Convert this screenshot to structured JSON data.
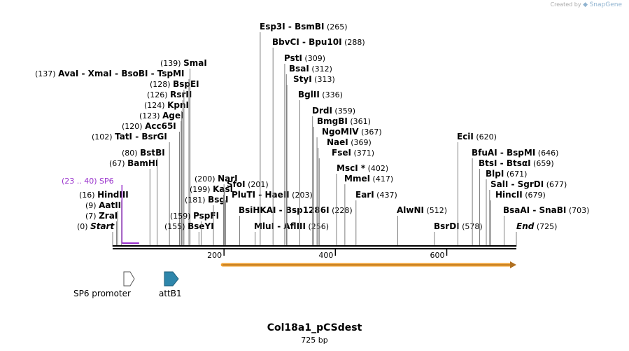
{
  "app": {
    "credit_prefix": "Created by",
    "credit_brand": "SnapGene",
    "brand_icon": "snapgene-logo-icon"
  },
  "plasmid": {
    "name": "Col18a1_pCSdest",
    "length_label": "725 bp",
    "length": 725
  },
  "ruler": {
    "ticks": [
      "200",
      "400",
      "600"
    ],
    "tick_values": [
      200,
      400,
      600
    ]
  },
  "colors": {
    "site_line": "#7f7f7f",
    "backbone": "#000000",
    "primer": "#9932cc",
    "orf_fill": "#f0a030",
    "orf_stroke": "#b07020",
    "promoter_fill": "#ffffff",
    "attb_fill": "#2e86ab"
  },
  "sites": [
    {
      "pos": 0,
      "label": "Start",
      "num": "(0)",
      "num_before": true,
      "italic": true
    },
    {
      "pos": 7,
      "label": "ZraI",
      "num": "(7)",
      "num_before": true
    },
    {
      "pos": 9,
      "label": "AatII",
      "num": "(9)",
      "num_before": true
    },
    {
      "pos": 16,
      "label": "HindIII",
      "num": "(16)",
      "num_before": true
    },
    {
      "pos": 67,
      "label": "BamHI",
      "num": "(67)",
      "num_before": true
    },
    {
      "pos": 80,
      "label": "BstBI",
      "num": "(80)",
      "num_before": true
    },
    {
      "pos": 102,
      "label": "TatI  -  BsrGI",
      "num": "(102)",
      "num_before": true
    },
    {
      "pos": 120,
      "label": "Acc65I",
      "num": "(120)",
      "num_before": true
    },
    {
      "pos": 123,
      "label": "AgeI",
      "num": "(123)",
      "num_before": true
    },
    {
      "pos": 124,
      "label": "KpnI",
      "num": "(124)",
      "num_before": true
    },
    {
      "pos": 126,
      "label": "RsrII",
      "num": "(126)",
      "num_before": true
    },
    {
      "pos": 128,
      "label": "BspEI",
      "num": "(128)",
      "num_before": true
    },
    {
      "pos": 137,
      "label": "AvaI  -  XmaI  -  BsoBI  -  TspMI",
      "num": "(137)",
      "num_before": true
    },
    {
      "pos": 139,
      "label": "SmaI",
      "num": "(139)",
      "num_before": true
    },
    {
      "pos": 155,
      "label": "BseYI",
      "num": "(155)",
      "num_before": true
    },
    {
      "pos": 159,
      "label": "PspFI",
      "num": "(159)",
      "num_before": true
    },
    {
      "pos": 181,
      "label": "BsgI",
      "num": "(181)",
      "num_before": true
    },
    {
      "pos": 199,
      "label": "KasI",
      "num": "(199)",
      "num_before": true
    },
    {
      "pos": 200,
      "label": "NarI",
      "num": "(200)",
      "num_before": true
    },
    {
      "pos": 201,
      "label": "SfoI",
      "num": "(201)",
      "num_before": false
    },
    {
      "pos": 203,
      "label": "PluTI  -  HaeII",
      "num": "(203)",
      "num_before": false
    },
    {
      "pos": 228,
      "label": "BsiHKAI  -  Bsp1286I",
      "num": "(228)",
      "num_before": false
    },
    {
      "pos": 256,
      "label": "MluI  -  AflIII",
      "num": "(256)",
      "num_before": false
    },
    {
      "pos": 265,
      "label": "Esp3I  -  BsmBI",
      "num": "(265)",
      "num_before": false
    },
    {
      "pos": 288,
      "label": "BbvCI  -  Bpu10I",
      "num": "(288)",
      "num_before": false
    },
    {
      "pos": 309,
      "label": "PstI",
      "num": "(309)",
      "num_before": false
    },
    {
      "pos": 312,
      "label": "BsaI",
      "num": "(312)",
      "num_before": false
    },
    {
      "pos": 313,
      "label": "StyI",
      "num": "(313)",
      "num_before": false
    },
    {
      "pos": 336,
      "label": "BglII",
      "num": "(336)",
      "num_before": false
    },
    {
      "pos": 359,
      "label": "DrdI",
      "num": "(359)",
      "num_before": false
    },
    {
      "pos": 361,
      "label": "BmgBI",
      "num": "(361)",
      "num_before": false
    },
    {
      "pos": 367,
      "label": "NgoMIV",
      "num": "(367)",
      "num_before": false
    },
    {
      "pos": 369,
      "label": "NaeI",
      "num": "(369)",
      "num_before": false
    },
    {
      "pos": 371,
      "label": "FseI",
      "num": "(371)",
      "num_before": false
    },
    {
      "pos": 402,
      "label": "MscI *",
      "num": "(402)",
      "num_before": false
    },
    {
      "pos": 417,
      "label": "MmeI",
      "num": "(417)",
      "num_before": false
    },
    {
      "pos": 437,
      "label": "EarI",
      "num": "(437)",
      "num_before": false
    },
    {
      "pos": 512,
      "label": "AlwNI",
      "num": "(512)",
      "num_before": false
    },
    {
      "pos": 578,
      "label": "BsrDI",
      "num": "(578)",
      "num_before": false
    },
    {
      "pos": 620,
      "label": "EciI",
      "num": "(620)",
      "num_before": false
    },
    {
      "pos": 646,
      "label": "BfuAI  -  BspMI",
      "num": "(646)",
      "num_before": false
    },
    {
      "pos": 659,
      "label": "BtsI  -  BtsαI",
      "num": "(659)",
      "num_before": false
    },
    {
      "pos": 671,
      "label": "BlpI",
      "num": "(671)",
      "num_before": false
    },
    {
      "pos": 677,
      "label": "SalI  -  SgrDI",
      "num": "(677)",
      "num_before": false
    },
    {
      "pos": 679,
      "label": "HincII",
      "num": "(679)",
      "num_before": false
    },
    {
      "pos": 703,
      "label": "BsaAI  -  SnaBI",
      "num": "(703)",
      "num_before": false
    },
    {
      "pos": 725,
      "label": "End",
      "num": "(725)",
      "num_before": false,
      "italic": true,
      "num_after_text": true
    }
  ],
  "primer": {
    "range_label": "(23 .. 40)",
    "name": "SP6",
    "start": 23,
    "end": 40
  },
  "orf": {
    "start": 200,
    "end": 725,
    "direction": "forward"
  },
  "features": [
    {
      "label": "SP6 promoter",
      "kind": "promoter",
      "icon": "promoter-arrow-icon",
      "start": 23,
      "end": 40
    },
    {
      "label": "attB1",
      "kind": "attb",
      "icon": "attb-arrow-icon",
      "start": 95,
      "end": 120
    }
  ]
}
